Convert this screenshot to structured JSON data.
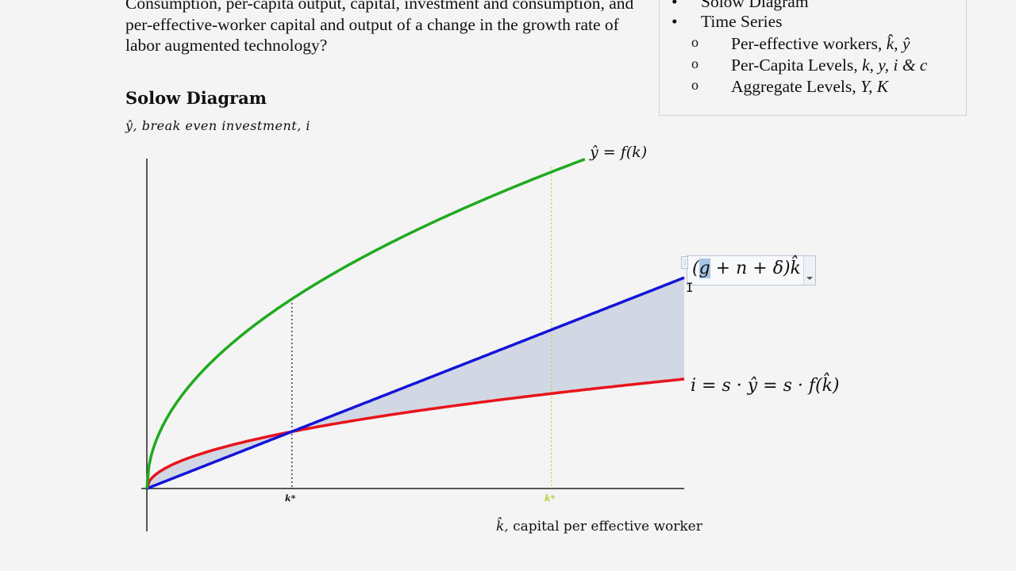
{
  "document": {
    "paragraph": "Consumption, per-capita output, capital, investment and consumption, and per-effective-worker capital and output of a change in the growth rate of labor augmented technology?",
    "heading": "Solow Diagram",
    "y_axis_label": "ŷ,  break even investment, i",
    "x_axis_label_symbol": "k̂,",
    "x_axis_label_text": "capital per effective worker"
  },
  "outline": {
    "items": [
      {
        "bullet": "•",
        "label": "Solow Diagram"
      },
      {
        "bullet": "•",
        "label": "Time Series"
      }
    ],
    "subitems": [
      {
        "bullet": "o",
        "label": "Per-effective workers, ",
        "math": "k̂, ŷ"
      },
      {
        "bullet": "o",
        "label": "Per-Capita Levels, ",
        "math": "k, y, i & c"
      },
      {
        "bullet": "o",
        "label": "Aggregate Levels,  ",
        "math": "Y, K"
      }
    ]
  },
  "equation_editor": {
    "before": "(",
    "selected": "g",
    "after": " + n + δ)k̂"
  },
  "chart_data": {
    "type": "line",
    "xlabel": "k̂,  capital per effective worker",
    "ylabel": "ŷ,  break even investment, i",
    "grid": false,
    "xlim": [
      0,
      1
    ],
    "ylim": [
      0,
      1
    ],
    "production_function": {
      "form": "sqrt",
      "label": "ŷ = f(k)",
      "color": "#1faa1f",
      "k_max": 0.815
    },
    "investment": {
      "savings_rate": 0.3,
      "label": "i = s · ŷ = s · f(k̂)",
      "color": "#e8141c"
    },
    "break_even": {
      "slope": 0.578,
      "label": "(g + n + δ)k̂",
      "color": "#1414d8"
    },
    "shaded_region_color": "#d2d7e4",
    "ticks": [
      {
        "label": "k*",
        "k": 0.27,
        "color": "#111111"
      },
      {
        "label": "k*",
        "k": 0.753,
        "color": "#b8cc30"
      }
    ]
  }
}
